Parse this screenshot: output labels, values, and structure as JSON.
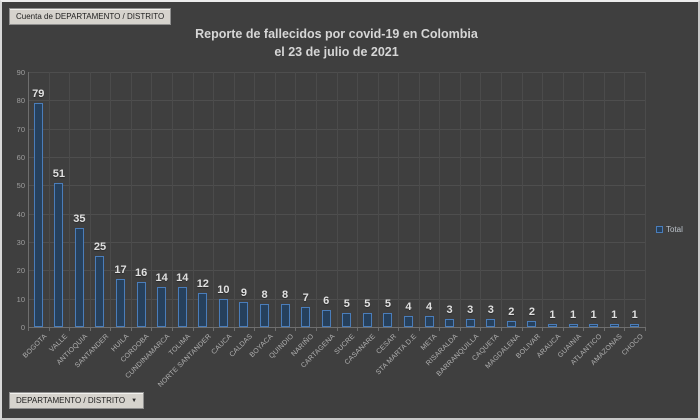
{
  "pivot_table_button": {
    "label": "Cuenta de DEPARTAMENTO / DISTRITO"
  },
  "field_button": {
    "label": "DEPARTAMENTO / DISTRITO",
    "arrow": "▼"
  },
  "title": {
    "line1": "Reporte de fallecidos por covid-19 en Colombia",
    "line2": "el 23 de julio de 2021"
  },
  "legend": {
    "label": "Total"
  },
  "colors": {
    "background": "#3F3F3F",
    "frame": "#C9C9C9",
    "bar_fill": "#26405C",
    "bar_border": "#4A7DBA",
    "gridline": "#4C4C4C",
    "axis_line": "#6E6E6E",
    "axis_text": "#9F9F9F",
    "category_text": "#B0B0B0",
    "data_label_text": "#E0E0E0",
    "title_text": "#D6D6D6",
    "button_bg": "#D6D3CD",
    "button_text": "#1D1D1D"
  },
  "chart_data": {
    "type": "bar",
    "title": "Reporte de fallecidos por covid-19 en Colombia el 23 de julio de 2021",
    "categories": [
      "BOGOTA",
      "VALLE",
      "ANTIOQUIA",
      "SANTANDER",
      "HUILA",
      "CORDOBA",
      "CUNDINAMARCA",
      "TOLIMA",
      "NORTE SANTANDER",
      "CAUCA",
      "CALDAS",
      "BOYACA",
      "QUINDIO",
      "NARIÑO",
      "CARTAGENA",
      "SUCRE",
      "CASANARE",
      "CESAR",
      "STA MARTA D.E",
      "META",
      "RISARALDA",
      "BARRANQUILLA",
      "CAQUETA",
      "MAGDALENA",
      "BOLIVAR",
      "ARAUCA",
      "GUAINIA",
      "ATLANTICO",
      "AMAZONAS",
      "CHOCO"
    ],
    "series": [
      {
        "name": "Total",
        "values": [
          79,
          51,
          35,
          25,
          17,
          16,
          14,
          14,
          12,
          10,
          9,
          8,
          8,
          7,
          6,
          5,
          5,
          5,
          4,
          4,
          3,
          3,
          3,
          2,
          2,
          1,
          1,
          1,
          1,
          1
        ]
      }
    ],
    "xlabel": "",
    "ylabel": "",
    "ylim": [
      0,
      90
    ],
    "ytick_step": 10,
    "grid": true,
    "legend_position": "right",
    "data_labels": true
  }
}
